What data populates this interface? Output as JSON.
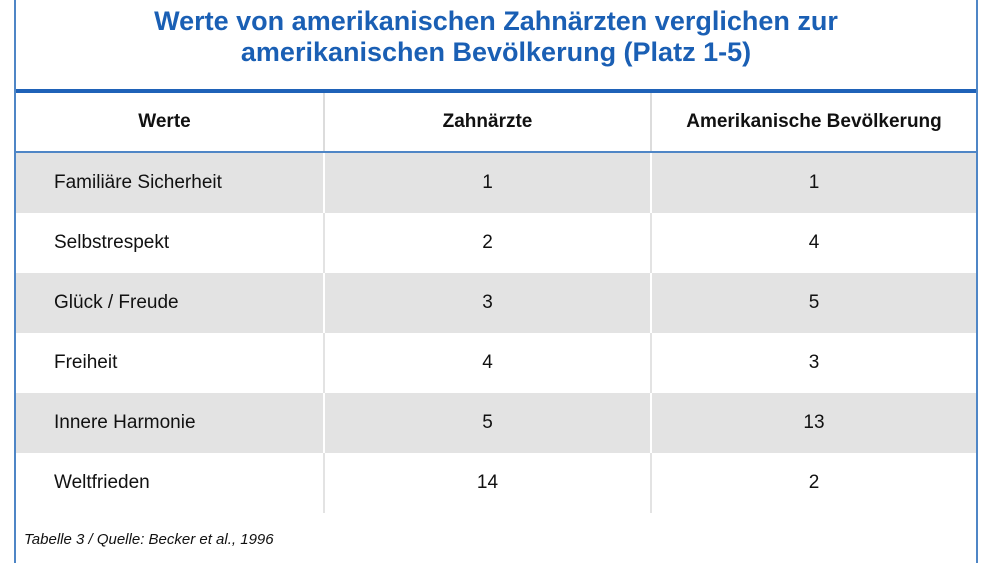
{
  "title": {
    "line1": "Werte von amerikanischen Zahnärzten verglichen zur",
    "line2": "amerikanischen Bevölkerung (Platz 1-5)"
  },
  "table": {
    "headers": [
      "Werte",
      "Zahnärzte",
      "Amerikanische Bevölkerung"
    ],
    "rows": [
      [
        "Familiäre Sicherheit",
        "1",
        "1"
      ],
      [
        "Selbstrespekt",
        "2",
        "4"
      ],
      [
        "Glück / Freude",
        "3",
        "5"
      ],
      [
        "Freiheit",
        "4",
        "3"
      ],
      [
        "Innere Harmonie",
        "5",
        "13"
      ],
      [
        "Weltfrieden",
        "14",
        "2"
      ]
    ]
  },
  "caption": "Tabelle 3 / Quelle: Becker et al., 1996",
  "colors": {
    "title": "#1a5fb4",
    "rule": "#1f62b8",
    "frame": "#4f86c6",
    "row_shade": "#e3e3e3"
  }
}
